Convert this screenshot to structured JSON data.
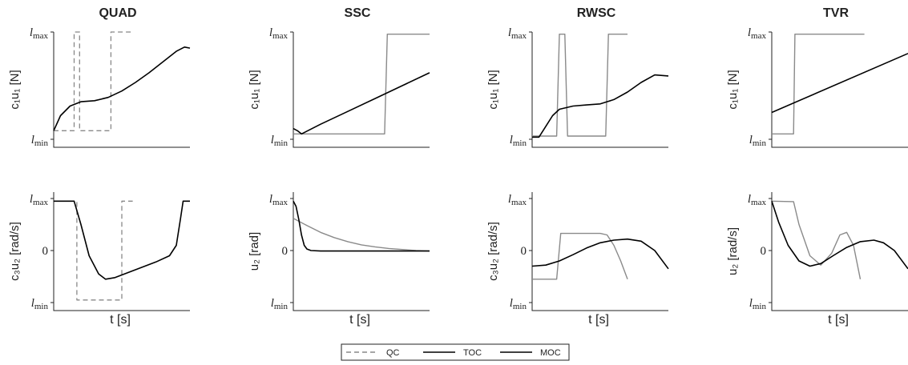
{
  "chart_data": [
    {
      "panel": "QUAD-top",
      "type": "line",
      "title": "QUAD",
      "ylabel": "c₁u₁ [N]",
      "yticks": [
        "l_max",
        "l_min"
      ],
      "xlabel": "",
      "xlim": [
        0,
        1
      ],
      "ylim": [
        0,
        1
      ],
      "series": [
        {
          "name": "QC",
          "style": "dashed",
          "x": [
            0,
            0.15,
            0.15,
            0.19,
            0.19,
            0.35,
            0.35,
            0.42,
            0.42,
            0.58
          ],
          "y": [
            0.08,
            0.08,
            1,
            1,
            0.08,
            0.08,
            0.08,
            0.08,
            1,
            1
          ]
        },
        {
          "name": "TOC",
          "style": "solid",
          "x": [
            0,
            0.05,
            0.12,
            0.2,
            0.3,
            0.4,
            0.5,
            0.6,
            0.7,
            0.8,
            0.9,
            0.96,
            1
          ],
          "y": [
            0.08,
            0.22,
            0.31,
            0.35,
            0.36,
            0.39,
            0.45,
            0.53,
            0.62,
            0.72,
            0.82,
            0.86,
            0.85
          ]
        }
      ]
    },
    {
      "panel": "SSC-top",
      "type": "line",
      "title": "SSC",
      "ylabel": "c₁u₁ [N]",
      "yticks": [
        "l_max",
        "l_min"
      ],
      "xlabel": "",
      "xlim": [
        0,
        1
      ],
      "ylim": [
        0,
        1
      ],
      "series": [
        {
          "name": "MOC",
          "style": "solid",
          "gray": true,
          "x": [
            0,
            0.67,
            0.69,
            1
          ],
          "y": [
            0.05,
            0.05,
            0.98,
            0.98
          ]
        },
        {
          "name": "TOC",
          "style": "solid",
          "x": [
            0,
            0.03,
            0.06,
            0.2,
            0.4,
            0.6,
            0.8,
            1
          ],
          "y": [
            0.1,
            0.08,
            0.05,
            0.14,
            0.26,
            0.38,
            0.5,
            0.62
          ]
        }
      ]
    },
    {
      "panel": "RWSC-top",
      "type": "line",
      "title": "RWSC",
      "ylabel": "c₁u₁ [N]",
      "yticks": [
        "l_max",
        "l_min"
      ],
      "xlabel": "",
      "xlim": [
        0,
        1
      ],
      "ylim": [
        0,
        1
      ],
      "series": [
        {
          "name": "MOC",
          "style": "solid",
          "gray": true,
          "x": [
            0,
            0.18,
            0.2,
            0.24,
            0.26,
            0.54,
            0.56,
            0.7
          ],
          "y": [
            0.03,
            0.03,
            0.98,
            0.98,
            0.03,
            0.03,
            0.98,
            0.98
          ]
        },
        {
          "name": "TOC",
          "style": "solid",
          "x": [
            0,
            0.05,
            0.1,
            0.15,
            0.2,
            0.3,
            0.4,
            0.5,
            0.6,
            0.7,
            0.8,
            0.9,
            1
          ],
          "y": [
            0.02,
            0.02,
            0.12,
            0.22,
            0.28,
            0.31,
            0.32,
            0.33,
            0.37,
            0.44,
            0.53,
            0.6,
            0.59
          ]
        }
      ]
    },
    {
      "panel": "TVR-top",
      "type": "line",
      "title": "TVR",
      "ylabel": "c₁u₁ [N]",
      "yticks": [
        "l_max",
        "l_min"
      ],
      "xlabel": "",
      "xlim": [
        0,
        1
      ],
      "ylim": [
        0,
        1
      ],
      "series": [
        {
          "name": "MOC",
          "style": "solid",
          "gray": true,
          "x": [
            0,
            0.16,
            0.17,
            0.68
          ],
          "y": [
            0.05,
            0.05,
            0.98,
            0.98
          ]
        },
        {
          "name": "TOC",
          "style": "solid",
          "x": [
            0,
            1
          ],
          "y": [
            0.25,
            0.8
          ]
        }
      ]
    },
    {
      "panel": "QUAD-bottom",
      "type": "line",
      "title": "",
      "ylabel": "c₃u₂ [rad/s]",
      "yticks": [
        "l_max",
        "0",
        "l_min"
      ],
      "xlabel": "t [s]",
      "xlim": [
        0,
        1
      ],
      "ylim": [
        -1,
        1
      ],
      "series": [
        {
          "name": "QC",
          "style": "dashed",
          "x": [
            0,
            0.15,
            0.17,
            0.17,
            0.5,
            0.5,
            0.58
          ],
          "y": [
            0.95,
            0.95,
            0.95,
            -0.95,
            -0.95,
            0.95,
            0.95
          ]
        },
        {
          "name": "TOC",
          "style": "solid",
          "x": [
            0,
            0.15,
            0.2,
            0.26,
            0.33,
            0.38,
            0.45,
            0.55,
            0.65,
            0.75,
            0.85,
            0.9,
            0.93,
            0.95,
            1
          ],
          "y": [
            0.95,
            0.95,
            0.5,
            -0.1,
            -0.45,
            -0.55,
            -0.52,
            -0.42,
            -0.32,
            -0.22,
            -0.1,
            0.1,
            0.6,
            0.95,
            0.95
          ]
        }
      ]
    },
    {
      "panel": "SSC-bottom",
      "type": "line",
      "title": "",
      "ylabel": "u₂ [rad]",
      "yticks": [
        "l_max",
        "0",
        "l_min"
      ],
      "xlabel": "t [s]",
      "xlim": [
        0,
        1
      ],
      "ylim": [
        -1,
        1
      ],
      "series": [
        {
          "name": "MOC",
          "style": "solid",
          "gray": true,
          "x": [
            0,
            0.1,
            0.2,
            0.3,
            0.4,
            0.5,
            0.6,
            0.7,
            0.8,
            0.9,
            1
          ],
          "y": [
            0.62,
            0.48,
            0.35,
            0.25,
            0.17,
            0.11,
            0.07,
            0.04,
            0.02,
            0.0,
            -0.01
          ]
        },
        {
          "name": "TOC",
          "style": "solid",
          "x": [
            0,
            0.02,
            0.04,
            0.06,
            0.08,
            0.1,
            0.13,
            0.2,
            0.3,
            0.5,
            1
          ],
          "y": [
            0.95,
            0.85,
            0.6,
            0.3,
            0.1,
            0.03,
            0.0,
            -0.01,
            -0.01,
            -0.01,
            -0.01
          ]
        }
      ]
    },
    {
      "panel": "RWSC-bottom",
      "type": "line",
      "title": "",
      "ylabel": "c₃u₂ [rad/s]",
      "yticks": [
        "l_max",
        "0",
        "l_min"
      ],
      "xlabel": "t [s]",
      "xlim": [
        0,
        1
      ],
      "ylim": [
        -1,
        1
      ],
      "series": [
        {
          "name": "MOC",
          "style": "solid",
          "gray": true,
          "x": [
            0,
            0.18,
            0.21,
            0.5,
            0.55,
            0.6,
            0.65,
            0.7
          ],
          "y": [
            -0.55,
            -0.55,
            0.33,
            0.33,
            0.3,
            0.1,
            -0.2,
            -0.55
          ]
        },
        {
          "name": "TOC",
          "style": "solid",
          "x": [
            0,
            0.1,
            0.2,
            0.3,
            0.4,
            0.5,
            0.6,
            0.7,
            0.8,
            0.9,
            1
          ],
          "y": [
            -0.3,
            -0.28,
            -0.2,
            -0.08,
            0.05,
            0.15,
            0.2,
            0.22,
            0.18,
            0.0,
            -0.35
          ]
        }
      ]
    },
    {
      "panel": "TVR-bottom",
      "type": "line",
      "title": "",
      "ylabel": "u₂ [rad/s]",
      "yticks": [
        "l_max",
        "0",
        "l_min"
      ],
      "xlabel": "t [s]",
      "xlim": [
        0,
        1
      ],
      "ylim": [
        -1,
        1
      ],
      "series": [
        {
          "name": "MOC",
          "style": "solid",
          "gray": true,
          "x": [
            0,
            0.16,
            0.2,
            0.28,
            0.36,
            0.44,
            0.5,
            0.55,
            0.6,
            0.65
          ],
          "y": [
            0.95,
            0.94,
            0.5,
            -0.1,
            -0.28,
            -0.05,
            0.3,
            0.35,
            0.1,
            -0.55
          ]
        },
        {
          "name": "TOC",
          "style": "solid",
          "x": [
            0,
            0.05,
            0.12,
            0.2,
            0.28,
            0.36,
            0.45,
            0.55,
            0.65,
            0.75,
            0.82,
            0.9,
            1
          ],
          "y": [
            0.95,
            0.55,
            0.1,
            -0.2,
            -0.3,
            -0.25,
            -0.1,
            0.06,
            0.17,
            0.2,
            0.15,
            0.0,
            -0.35
          ]
        }
      ]
    }
  ],
  "legend": {
    "entries": [
      {
        "name": "QC",
        "style": "dashed",
        "color": "#888888"
      },
      {
        "name": "TOC",
        "style": "solid",
        "color": "#000000"
      },
      {
        "name": "MOC",
        "style": "solid",
        "color": "#000000"
      }
    ]
  },
  "colors": {
    "toc": "#000000",
    "moc": "#8a8a8a",
    "qc": "#888888",
    "axis": "#222222"
  }
}
